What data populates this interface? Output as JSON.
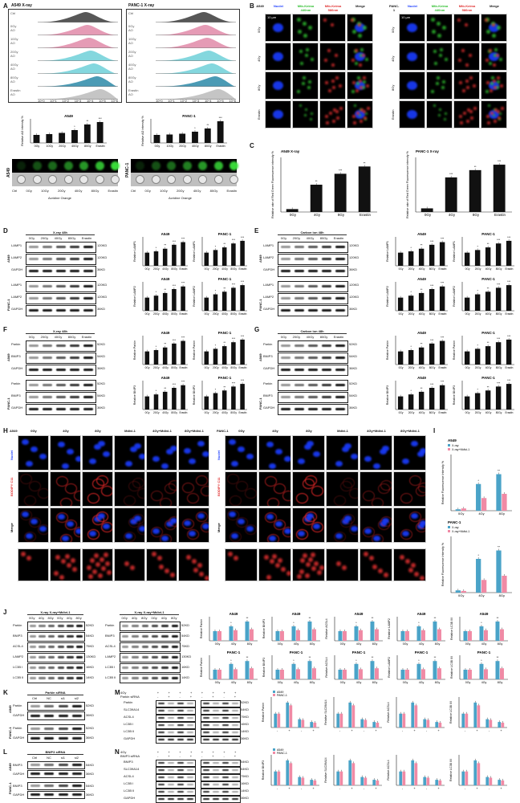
{
  "panels": {
    "A": "A",
    "B": "B",
    "C": "C",
    "D": "D",
    "E": "E",
    "F": "F",
    "G": "G",
    "H": "H",
    "I": "I",
    "J": "J",
    "K": "K",
    "L": "L",
    "M": "M",
    "N": "N"
  },
  "A": {
    "left_title": "A549   X-ray",
    "right_title": "PANC-1   X-ray",
    "flow_rows": [
      "Ctrl",
      "0Gy",
      "AO",
      "10Gy",
      "AO",
      "20Gy",
      "AO",
      "40Gy",
      "AO",
      "80Gy",
      "AO",
      "Erastin",
      "AO"
    ],
    "flow_axis": [
      "10^0",
      "10^1",
      "10^2",
      "10^3",
      "10^4",
      "10^5",
      "10^6"
    ],
    "bar_left_title": "A549",
    "bar_right_title": "PANC-1",
    "bar_ylabel": "Relative AO intensity %",
    "bar_categories": [
      "0Gy",
      "10Gy",
      "20Gy",
      "40Gy",
      "80Gy",
      "Erastin"
    ],
    "dots_left_label": "A549",
    "dots_right_label": "PANC-1",
    "dots_caption": "Acridine Orange",
    "dots_axis": [
      "Ctrl",
      "0Gy",
      "10Gy",
      "20Gy",
      "40Gy",
      "80Gy",
      "Erastin"
    ]
  },
  "B": {
    "left_header": [
      "A549",
      "Nuclei",
      "Mtb-Keima 440nm",
      "Mtb-Keima 586nm",
      "Merge"
    ],
    "right_header": [
      "PANC-1",
      "Nuclei",
      "Mtb-Keima 440nm",
      "Mtb-Keima 586nm",
      "Merge"
    ],
    "rows": [
      "0Gy",
      "4Gy",
      "8Gy",
      "Erastin"
    ],
    "scale": "10 µm"
  },
  "C": {
    "left_title": "A549  X-ray",
    "right_title": "PANC-1  X-ray",
    "ylabel": "Relative rate of Red Green Fluorescence intensity %",
    "categories": [
      "0Gy",
      "4Gy",
      "8Gy",
      "Erastin"
    ]
  },
  "D": {
    "header": "X-ray  48h",
    "lanes": [
      "0Gy",
      "20Gy",
      "40Gy",
      "80Gy",
      "Erastin"
    ],
    "blots": [
      "LAMP1",
      "LAMP2",
      "GAPDH",
      "LAMP1",
      "LAMP2",
      "GAPDH"
    ],
    "kd": [
      "120KD",
      "120KD",
      "36KD",
      "120KD",
      "120KD",
      "36KD"
    ],
    "cell_lines": [
      "A549",
      "PANC-1"
    ]
  },
  "E": {
    "header": "Carbon ion  48h",
    "lanes": [
      "0Gy",
      "20Gy",
      "40Gy",
      "80Gy",
      "Erastin"
    ],
    "blots": [
      "LAMP1",
      "LAMP2",
      "GAPDH",
      "LAMP1",
      "LAMP2",
      "GAPDH"
    ],
    "kd": [
      "120KD",
      "120KD",
      "36KD",
      "120KD",
      "120KD",
      "36KD"
    ]
  },
  "F": {
    "header": "X-ray  48h",
    "lanes": [
      "0Gy",
      "20Gy",
      "40Gy",
      "80Gy",
      "Erastin"
    ],
    "blots": [
      "Parkin",
      "BNIP3",
      "GAPDH",
      "Parkin",
      "BNIP3",
      "GAPDH"
    ],
    "kd": [
      "52KD",
      "54KD",
      "36KD",
      "52KD",
      "54KD",
      "36KD"
    ]
  },
  "G": {
    "header": "Carbon ion  48h",
    "lanes": [
      "0Gy",
      "20Gy",
      "40Gy",
      "80Gy",
      "Erastin"
    ],
    "blots": [
      "Parkin",
      "BNIP3",
      "GAPDH",
      "Parkin",
      "BNIP3",
      "GAPDH"
    ],
    "kd": [
      "52KD",
      "54KD",
      "36KD",
      "52KD",
      "54KD",
      "36KD"
    ]
  },
  "DG_charts": {
    "left_title": "A549",
    "right_title": "PANC-1",
    "categories": [
      "0Gy",
      "20Gy",
      "40Gy",
      "80Gy",
      "Erastin"
    ]
  },
  "H": {
    "left_header": [
      "A549",
      "0Gy",
      "4Gy",
      "8Gy",
      "Mdivi-1",
      "4Gy+Mdivi-1",
      "8Gy+Mdivi-1"
    ],
    "right_header": [
      "PANC-1",
      "0Gy",
      "4Gy",
      "8Gy",
      "Mdivi-1",
      "4Gy+Mdivi-1",
      "8Gy+Mdivi-1"
    ],
    "rows": [
      "Nuclei",
      "BODIPY C11",
      "Merge"
    ]
  },
  "I": {
    "top_title": "A549",
    "bottom_title": "PANC-1",
    "legend": [
      "X-ray",
      "X-ray+Mdivi-1"
    ],
    "ylabel": "Relative Fluorescence Intensity %",
    "categories": [
      "0Gy",
      "4Gy",
      "8Gy"
    ],
    "sig": [
      "ns",
      "*",
      "**"
    ]
  },
  "J": {
    "a549_header": [
      "A549",
      "X-ray",
      "X-ray+Mdivi-1"
    ],
    "panc_header": [
      "PANC-1",
      "X-ray",
      "X-ray+Mdivi-1"
    ],
    "lanes": [
      "0Gy",
      "4Gy",
      "8Gy",
      "0Gy",
      "4Gy",
      "8Gy"
    ],
    "blots": [
      "Parkin",
      "BNIP3",
      "ACSL4",
      "LAMP2",
      "LC3B I",
      "LC3B II"
    ],
    "kd": [
      "52KD",
      "54KD",
      "75KD",
      "130KD",
      "16KD",
      "14KD"
    ],
    "charts": [
      "Relative Parkin",
      "Relative BNIP3",
      "Relative ACSL4",
      "Relative LAMP2",
      "Relative LC3B II/I"
    ],
    "chart_titles_top": [
      "A549",
      "A549",
      "A549",
      "A549",
      "A549"
    ],
    "chart_titles_bottom": [
      "PANC-1",
      "PANC-1",
      "PANC-1",
      "PANC-1",
      "PANC-1"
    ],
    "legend": [
      "X-ray",
      "X-ray+Mdivi-1"
    ]
  },
  "K": {
    "lanes": [
      "Ctrl",
      "NC",
      "si1",
      "si2"
    ],
    "title_top": "Parkin siRNA",
    "blots": [
      "Parkin",
      "GAPDH"
    ],
    "kd": [
      "52KD",
      "36KD"
    ]
  },
  "L": {
    "lanes": [
      "Ctrl",
      "NC",
      "si1",
      "si2"
    ],
    "title_top": "BNIP3 siRNA",
    "blots": [
      "BNIP3",
      "GAPDH"
    ],
    "kd": [
      "54KD",
      "36KD"
    ]
  },
  "M": {
    "rows": [
      "4Gy",
      "Parkin siRNA"
    ],
    "signs": [
      "-",
      "+",
      "-",
      "+"
    ],
    "blots": [
      "Parkin",
      "SLC39A14",
      "ACSL4",
      "LC3B I",
      "LC3B II",
      "GAPDH"
    ],
    "kd": [
      "52KD",
      "54KD",
      "75KD",
      "16KD",
      "14KD",
      "36KD"
    ],
    "charts": [
      "Relative Parkin",
      "Relative SLC39A14",
      "Relative ACSL4",
      "Relative LC3B II/I"
    ],
    "legend": [
      "A549",
      "PANC-1"
    ]
  },
  "N": {
    "rows": [
      "4Gy",
      "BNIP3 siRNA"
    ],
    "signs": [
      "-",
      "+",
      "-",
      "+"
    ],
    "blots": [
      "BNIP3",
      "SLC39A14",
      "ACSL4",
      "LC3B I",
      "LC3B II",
      "GAPDH"
    ],
    "kd": [
      "54KD",
      "54KD",
      "75KD",
      "16KD",
      "14KD",
      "36KD"
    ],
    "charts": [
      "Relative BNIP3",
      "Relative SLC39A14",
      "Relative ACSL4",
      "Relative LC3B II/I"
    ],
    "legend": [
      "A549",
      "PANC-1"
    ]
  },
  "colors": {
    "flow": [
      "#444444",
      "#6a6a6a",
      "#e08aa8",
      "#e08aa8",
      "#6fd0d8",
      "#6fd0d8",
      "#2b8aa8",
      "#bbbbbb"
    ],
    "bar_black": "#111111",
    "bar_blue": "#4aa3c8",
    "bar_pink": "#f08aa5",
    "nuclei": "#1a3cff",
    "green": "#2fbf2f",
    "red": "#e03030"
  },
  "chart_data": [
    {
      "type": "bar",
      "title": "A549",
      "categories": [
        "0Gy",
        "10Gy",
        "20Gy",
        "40Gy",
        "80Gy",
        "Erastin"
      ],
      "values": [
        100,
        110,
        125,
        160,
        230,
        260
      ],
      "ylim": [
        0,
        300
      ]
    },
    {
      "type": "bar",
      "title": "PANC-1",
      "categories": [
        "0Gy",
        "10Gy",
        "20Gy",
        "40Gy",
        "80Gy",
        "Erastin"
      ],
      "values": [
        100,
        105,
        115,
        140,
        180,
        270
      ],
      "ylim": [
        0,
        300
      ]
    },
    {
      "type": "bar",
      "title": "A549  X-ray",
      "categories": [
        "0Gy",
        "4Gy",
        "8Gy",
        "Erastin"
      ],
      "values": [
        80,
        750,
        1050,
        1250
      ],
      "ylim": [
        0,
        1500
      ]
    },
    {
      "type": "bar",
      "title": "PANC-1  X-ray",
      "categories": [
        "0Gy",
        "4Gy",
        "8Gy",
        "Erastin"
      ],
      "values": [
        100,
        950,
        1150,
        1300
      ],
      "ylim": [
        0,
        1500
      ]
    },
    {
      "type": "bar",
      "title": "A549",
      "categories": [
        "0Gy",
        "4Gy",
        "8Gy"
      ],
      "series": [
        {
          "name": "X-ray",
          "values": [
            50,
            950,
            1300
          ]
        },
        {
          "name": "X-ray+Mdivi-1",
          "values": [
            80,
            450,
            600
          ]
        }
      ],
      "ylim": [
        0,
        2000
      ]
    },
    {
      "type": "bar",
      "title": "PANC-1",
      "categories": [
        "0Gy",
        "4Gy",
        "8Gy"
      ],
      "series": [
        {
          "name": "X-ray",
          "values": [
            80,
            1200,
            1500
          ]
        },
        {
          "name": "X-ray+Mdivi-1",
          "values": [
            60,
            450,
            600
          ]
        }
      ],
      "ylim": [
        0,
        2000
      ]
    }
  ]
}
